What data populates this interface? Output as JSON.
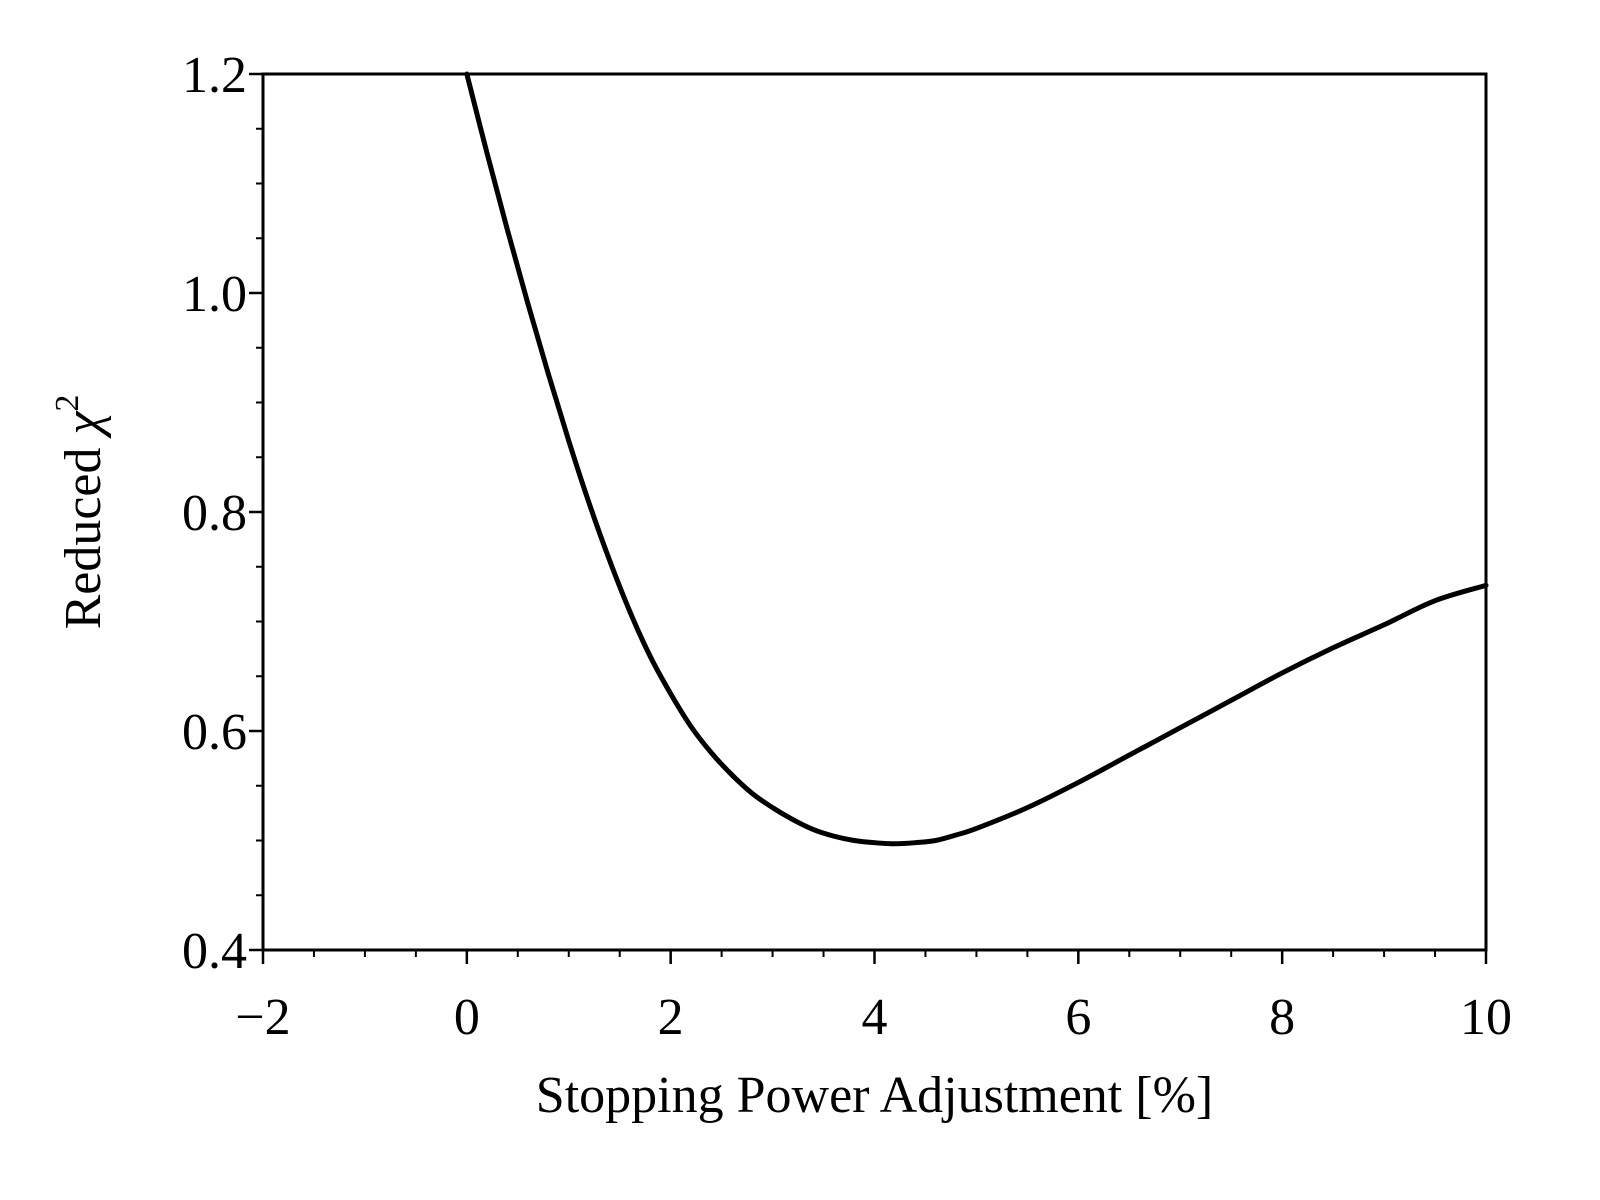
{
  "chart_data": {
    "type": "line",
    "title": "",
    "xlabel": "Stopping Power Adjustment [%]",
    "ylabel": {
      "prefix": "Reduced ",
      "symbol": "χ",
      "superscript": "2"
    },
    "xlim": [
      -2,
      10
    ],
    "ylim": [
      0.4,
      1.2
    ],
    "x_ticks": [
      -2,
      0,
      2,
      4,
      6,
      8,
      10
    ],
    "x_tick_labels": [
      "−2",
      "0",
      "2",
      "4",
      "6",
      "8",
      "10"
    ],
    "y_ticks": [
      0.4,
      0.6,
      0.8,
      1.0,
      1.2
    ],
    "y_tick_labels": [
      "0.4",
      "0.6",
      "0.8",
      "1.0",
      "1.2"
    ],
    "x_minor_step": 0.5,
    "y_minor_step": 0.05,
    "grid": false,
    "series": [
      {
        "color": "#000000",
        "x": [
          0.0,
          0.2,
          0.4,
          0.6,
          0.8,
          1.0,
          1.2,
          1.4,
          1.6,
          1.8,
          2.0,
          2.2,
          2.4,
          2.6,
          2.8,
          3.0,
          3.2,
          3.4,
          3.6,
          3.8,
          4.0,
          4.2,
          4.4,
          4.6,
          4.8,
          5.0,
          5.5,
          6.0,
          6.5,
          7.0,
          7.5,
          8.0,
          8.5,
          9.0,
          9.5,
          10.0
        ],
        "y": [
          1.2,
          1.127,
          1.057,
          0.99,
          0.926,
          0.865,
          0.808,
          0.756,
          0.709,
          0.668,
          0.634,
          0.604,
          0.58,
          0.56,
          0.543,
          0.53,
          0.519,
          0.51,
          0.504,
          0.5,
          0.498,
          0.497,
          0.498,
          0.5,
          0.505,
          0.511,
          0.53,
          0.553,
          0.578,
          0.603,
          0.628,
          0.653,
          0.676,
          0.697,
          0.719,
          0.733
        ]
      }
    ]
  }
}
